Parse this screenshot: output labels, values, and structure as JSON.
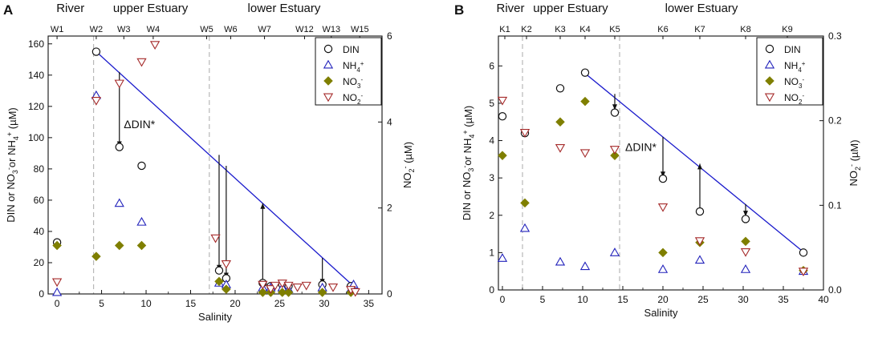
{
  "chart_data": [
    {
      "type": "scatter",
      "panel": "A",
      "xlabel": "Salinity",
      "ylabel": [
        "DIN or NO",
        "3",
        "-",
        "or NH",
        "4",
        "+",
        " (µM)"
      ],
      "y2label": [
        "NO",
        "2",
        "-",
        " (µM)"
      ],
      "xlim": [
        -1,
        36.5
      ],
      "ylim": [
        0,
        165
      ],
      "y2lim": [
        0,
        6
      ],
      "xticks": [
        "0",
        "5",
        "10",
        "15",
        "20",
        "25",
        "30",
        "35"
      ],
      "yticks": [
        "0",
        "20",
        "40",
        "60",
        "80",
        "100",
        "120",
        "140",
        "160"
      ],
      "y2ticks": [
        "0",
        "2",
        "4",
        "6"
      ],
      "regions": [
        {
          "label": "River",
          "x": 1.5
        },
        {
          "label": "upper Estuary",
          "x": 10.5
        },
        {
          "label": "lower Estuary",
          "x": 25.5
        }
      ],
      "dividers": [
        4.1,
        17.1
      ],
      "stations": [
        {
          "label": "W1",
          "x": 0
        },
        {
          "label": "W2",
          "x": 4.4
        },
        {
          "label": "W3",
          "x": 7.5
        },
        {
          "label": "W4",
          "x": 10.8
        },
        {
          "label": "W5",
          "x": 16.8
        },
        {
          "label": "W6",
          "x": 19.5
        },
        {
          "label": "W7",
          "x": 23.3
        },
        {
          "label": "W12",
          "x": 27.8
        },
        {
          "label": "W13",
          "x": 30.8
        },
        {
          "label": "W15",
          "x": 34.0
        }
      ],
      "series": [
        {
          "name": "DIN",
          "marker": "circle",
          "color": "#111111",
          "axis": "left",
          "points": [
            [
              0,
              33
            ],
            [
              4.4,
              155
            ],
            [
              7,
              94
            ],
            [
              9.5,
              82
            ],
            [
              18.2,
              15
            ],
            [
              19,
              10
            ],
            [
              23.1,
              7
            ],
            [
              24,
              5
            ],
            [
              25.3,
              6
            ],
            [
              26,
              5
            ],
            [
              29.8,
              6
            ],
            [
              33,
              5
            ]
          ]
        },
        {
          "name": "NH4+",
          "marker": "triangle",
          "color": "#2222bb",
          "axis": "left",
          "points": [
            [
              0,
              1
            ],
            [
              4.4,
              127
            ],
            [
              7,
              58
            ],
            [
              9.5,
              46
            ],
            [
              18.2,
              7
            ],
            [
              19,
              6
            ],
            [
              23.1,
              4
            ],
            [
              24,
              4
            ],
            [
              25.3,
              4
            ],
            [
              26,
              3
            ],
            [
              29.8,
              4
            ],
            [
              33,
              3
            ],
            [
              33.3,
              6
            ]
          ]
        },
        {
          "name": "NO3-",
          "marker": "diamond",
          "color": "#7f7f00",
          "axis": "left",
          "points": [
            [
              0,
              31
            ],
            [
              4.4,
              24
            ],
            [
              7,
              31
            ],
            [
              9.5,
              31
            ],
            [
              18.2,
              8
            ],
            [
              19,
              3
            ],
            [
              23.1,
              1
            ],
            [
              24,
              1
            ],
            [
              25.3,
              1
            ],
            [
              26,
              1
            ],
            [
              29.8,
              1
            ],
            [
              33,
              1
            ]
          ]
        },
        {
          "name": "NO2-",
          "marker": "triangle-down",
          "color": "#a52a2a",
          "axis": "right",
          "points": [
            [
              0,
              0.28
            ],
            [
              4.4,
              4.5
            ],
            [
              7,
              4.9
            ],
            [
              9.5,
              5.4
            ],
            [
              11,
              5.8
            ],
            [
              17.8,
              1.3
            ],
            [
              19,
              0.7
            ],
            [
              23.1,
              0.22
            ],
            [
              24,
              0.12
            ],
            [
              24.5,
              0.2
            ],
            [
              25.3,
              0.25
            ],
            [
              26,
              0.2
            ],
            [
              27,
              0.16
            ],
            [
              28,
              0.2
            ],
            [
              31,
              0.16
            ],
            [
              33,
              0.1
            ],
            [
              33.5,
              0.05
            ]
          ]
        }
      ],
      "mixing_line": {
        "from": [
          4.4,
          155
        ],
        "to": [
          33.3,
          5
        ]
      },
      "arrows": [
        {
          "x": 7,
          "from": 142,
          "to": 94
        },
        {
          "x": 18.2,
          "from": 89,
          "to": 15
        },
        {
          "x": 19,
          "from": 82,
          "to": 10
        },
        {
          "x": 23.1,
          "from": 7,
          "to": 58
        },
        {
          "x": 29.8,
          "from": 23,
          "to": 6
        }
      ],
      "annotation": {
        "text": "ΔDIN*",
        "x": 7.5,
        "y": 106
      },
      "legend": [
        "DIN",
        "NH4+",
        "NO3-",
        "NO2-"
      ],
      "legend_position": "top-right"
    },
    {
      "type": "scatter",
      "panel": "B",
      "xlabel": "Salinity",
      "ylabel": [
        "DIN or NO",
        "3",
        "-",
        "or NH",
        "4",
        "+",
        " (µM)"
      ],
      "y2label": [
        "NO",
        "2",
        "-",
        " (µM)"
      ],
      "xlim": [
        -0.5,
        40
      ],
      "ylim": [
        0,
        6.8
      ],
      "y2lim": [
        0,
        0.3
      ],
      "xticks": [
        "0",
        "5",
        "10",
        "15",
        "20",
        "25",
        "30",
        "35",
        "40"
      ],
      "yticks": [
        "0",
        "1",
        "2",
        "3",
        "4",
        "5",
        "6"
      ],
      "y2ticks": [
        "0.0",
        "0.1",
        "0.2",
        "0.3"
      ],
      "regions": [
        {
          "label": "River",
          "x": 1
        },
        {
          "label": "upper Estuary",
          "x": 8.5
        },
        {
          "label": "lower Estuary",
          "x": 24.8
        }
      ],
      "dividers": [
        2.5,
        14.6
      ],
      "stations": [
        {
          "label": "K1",
          "x": 0.3
        },
        {
          "label": "K2",
          "x": 3
        },
        {
          "label": "K3",
          "x": 7.2
        },
        {
          "label": "K4",
          "x": 10.3
        },
        {
          "label": "K5",
          "x": 14
        },
        {
          "label": "K6",
          "x": 20
        },
        {
          "label": "K7",
          "x": 24.6
        },
        {
          "label": "K8",
          "x": 30.3
        },
        {
          "label": "K9",
          "x": 35.5
        }
      ],
      "series": [
        {
          "name": "DIN",
          "marker": "circle",
          "color": "#111111",
          "axis": "left",
          "points": [
            [
              0,
              4.65
            ],
            [
              2.8,
              4.2
            ],
            [
              7.2,
              5.4
            ],
            [
              10.3,
              5.82
            ],
            [
              14,
              4.75
            ],
            [
              20,
              2.98
            ],
            [
              24.6,
              2.1
            ],
            [
              30.3,
              1.9
            ],
            [
              37.5,
              1.0
            ]
          ]
        },
        {
          "name": "NH4+",
          "marker": "triangle",
          "color": "#2222bb",
          "axis": "left",
          "points": [
            [
              0,
              0.85
            ],
            [
              2.8,
              1.65
            ],
            [
              7.2,
              0.75
            ],
            [
              10.3,
              0.63
            ],
            [
              14,
              1.0
            ],
            [
              20,
              0.55
            ],
            [
              24.6,
              0.8
            ],
            [
              30.3,
              0.55
            ],
            [
              37.5,
              0.5
            ]
          ]
        },
        {
          "name": "NO3-",
          "marker": "diamond",
          "color": "#7f7f00",
          "axis": "left",
          "points": [
            [
              0,
              3.6
            ],
            [
              2.8,
              2.33
            ],
            [
              7.2,
              4.5
            ],
            [
              10.3,
              5.05
            ],
            [
              14,
              3.6
            ],
            [
              20,
              1.0
            ],
            [
              24.6,
              1.27
            ],
            [
              30.3,
              1.3
            ],
            [
              37.5,
              0.52
            ]
          ]
        },
        {
          "name": "NO2-",
          "marker": "triangle-down",
          "color": "#a52a2a",
          "axis": "right",
          "points": [
            [
              0,
              0.224
            ],
            [
              2.8,
              0.186
            ],
            [
              7.2,
              0.168
            ],
            [
              10.3,
              0.162
            ],
            [
              14,
              0.166
            ],
            [
              20,
              0.098
            ],
            [
              24.6,
              0.058
            ],
            [
              30.3,
              0.045
            ],
            [
              37.5,
              0.022
            ]
          ]
        }
      ],
      "mixing_line": {
        "from": [
          10.3,
          5.8
        ],
        "to": [
          37.6,
          1.0
        ]
      },
      "arrows": [
        {
          "x": 14,
          "from": 5.25,
          "to": 4.82
        },
        {
          "x": 20,
          "from": 4.1,
          "to": 3.02
        },
        {
          "x": 24.6,
          "from": 2.18,
          "to": 3.38
        },
        {
          "x": 30.3,
          "from": 2.3,
          "to": 1.97
        }
      ],
      "annotation": {
        "text": "ΔDIN*",
        "x": 15.3,
        "y": 3.72
      },
      "legend": [
        "DIN",
        "NH4+",
        "NO3-",
        "NO2-"
      ],
      "legend_position": "top-right"
    }
  ]
}
